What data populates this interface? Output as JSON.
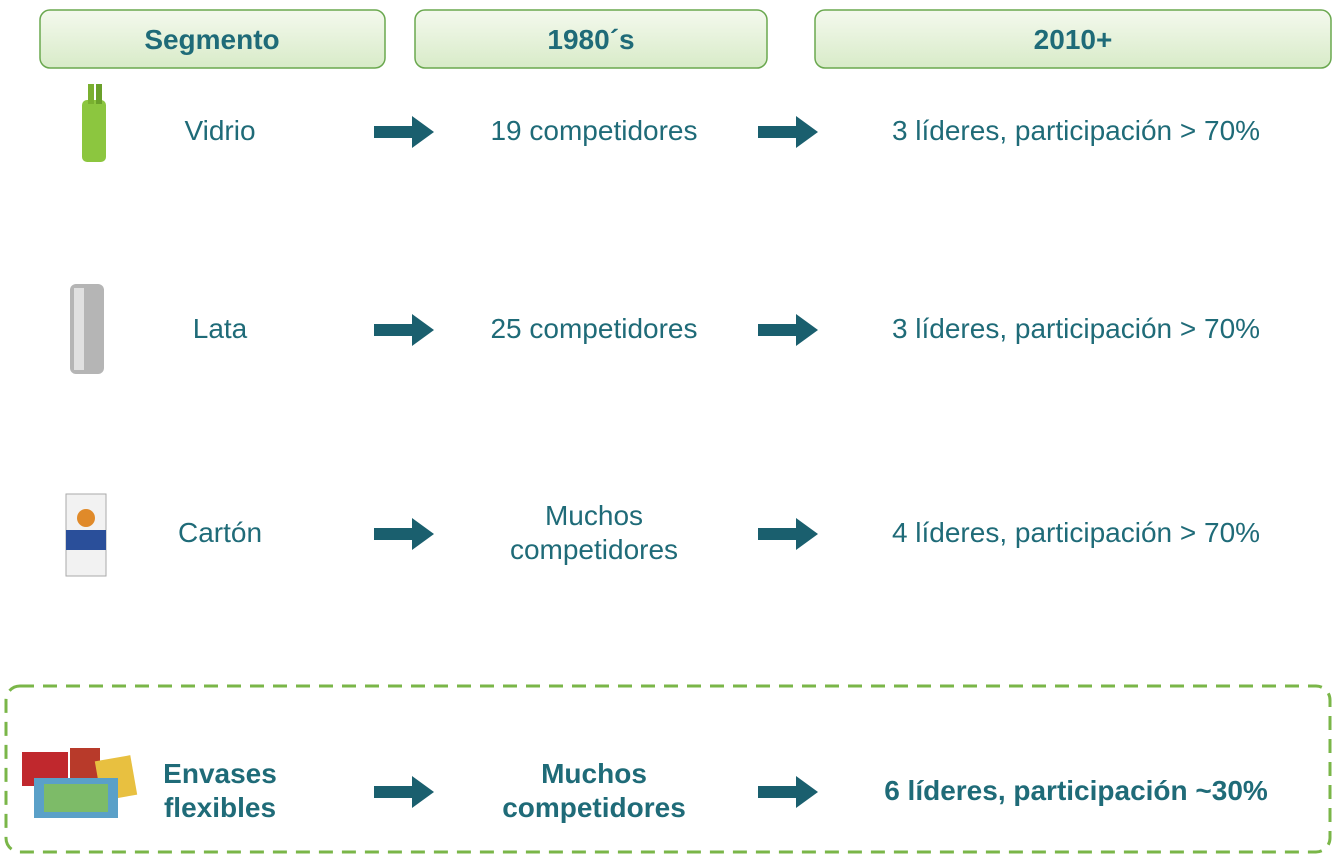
{
  "headers": [
    "Segmento",
    "1980´s",
    "2010+"
  ],
  "rows": [
    {
      "segment": [
        "Vidrio"
      ],
      "past": [
        "19 competidores"
      ],
      "present": [
        "3 líderes, participación > 70%"
      ]
    },
    {
      "segment": [
        "Lata"
      ],
      "past": [
        "25 competidores"
      ],
      "present": [
        "3 líderes, participación > 70%"
      ]
    },
    {
      "segment": [
        "Cartón"
      ],
      "past": [
        "Muchos",
        "competidores"
      ],
      "present": [
        "4 líderes, participación > 70%"
      ]
    },
    {
      "segment": [
        "Envases",
        "flexibles"
      ],
      "past": [
        "Muchos",
        "competidores"
      ],
      "present": [
        "6 líderes, participación ~30%"
      ],
      "highlighted": true
    }
  ]
}
